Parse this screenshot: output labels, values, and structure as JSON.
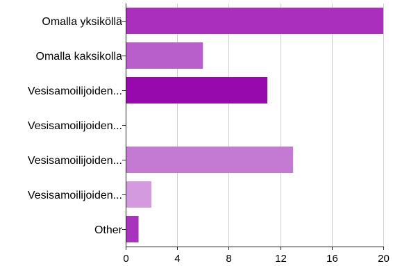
{
  "chart_data": {
    "type": "bar",
    "orientation": "horizontal",
    "title": "",
    "xlabel": "",
    "ylabel": "",
    "categories": [
      "Omalla yksiköllä",
      "Omalla kaksikolla",
      "Vesisamoilijoiden...",
      "Vesisamoilijoiden...",
      "Vesisamoilijoiden...",
      "Vesisamoilijoiden...",
      "Other"
    ],
    "values": [
      20,
      6,
      11,
      0,
      13,
      2,
      1
    ],
    "colors": [
      "#aa2fbd",
      "#b95fcc",
      "#9708ad",
      "#a12fb8",
      "#c47ad3",
      "#d39ae0",
      "#a833bd"
    ],
    "xlim": [
      0,
      20
    ],
    "xticks": [
      0,
      4,
      8,
      12,
      16,
      20
    ],
    "grid": true,
    "legend": "none"
  }
}
